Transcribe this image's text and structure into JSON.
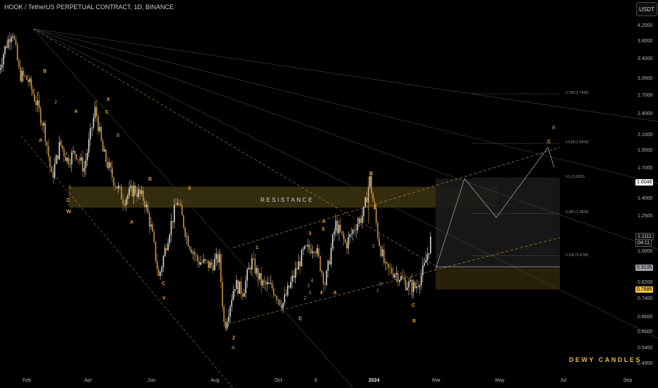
{
  "header": {
    "title": "HOOK / TetherUS PERPETUAL CONTRACT, 1D, BINANCE",
    "currency_button": "USDT"
  },
  "watermark": "DEWY CANDLES",
  "resistance_label": "RESISTANCE",
  "colors": {
    "background": "#000000",
    "candle_up": "#d9d9d9",
    "candle_down": "#c8923a",
    "wave_orange": "#e8a33a",
    "wave_gray": "#9a9a9a",
    "channel_dash": "#c8923a",
    "resistance_zone": "#3d3410",
    "support_zone": "#2a220a",
    "projection_box": "#1a1a1a"
  },
  "chart_data": {
    "type": "candlestick",
    "title": "HOOK / TetherUS PERPETUAL CONTRACT, 1D, BINANCE",
    "y_scale": "log",
    "ylim": [
      0.47,
      4.6
    ],
    "y_ticks": [
      "4.2000",
      "3.8000",
      "3.4000",
      "3.0000",
      "2.7000",
      "2.4000",
      "2.1000",
      "1.9000",
      "1.7000",
      "1.5500",
      "1.4000",
      "1.2500",
      "1.1111",
      "1.0000",
      "0.9135",
      "0.8200",
      "0.7886",
      "0.7400",
      "0.6600",
      "0.6000",
      "0.5400",
      "0.4900"
    ],
    "x_ticks": [
      "Feb",
      "Apr",
      "Jun",
      "Aug",
      "Oct",
      "6",
      "2024",
      "Mar",
      "May",
      "Jul",
      "Sep"
    ],
    "x_tick_bold": "2024",
    "price_tags": [
      {
        "value": "1.6048",
        "style": "white"
      },
      {
        "value": "1.1111",
        "style": "dark"
      },
      {
        "value": "04:11",
        "style": "dark"
      },
      {
        "value": "0.9135",
        "style": "gray"
      },
      {
        "value": "0.7886",
        "style": "yellow"
      }
    ],
    "fib_levels": [
      {
        "label": "0.786 (2.7442)",
        "price": 2.7442
      },
      {
        "label": "0.618 (2.0018)",
        "price": 2.0018
      },
      {
        "label": "0.5 (1.6052)",
        "price": 1.6052
      },
      {
        "label": "0.382 (1.2828)",
        "price": 1.2828
      },
      {
        "label": "0.236 (0.9794)",
        "price": 0.9794
      }
    ],
    "resistance_zone": [
      1.33,
      1.52
    ],
    "support_zone": [
      0.79,
      0.905
    ],
    "path_points": [
      [
        "2023-01-05",
        3.2
      ],
      [
        "2023-01-10",
        3.6
      ],
      [
        "2023-01-18",
        4.15
      ],
      [
        "2023-01-25",
        3.1
      ],
      [
        "2023-02-02",
        3.0
      ],
      [
        "2023-02-10",
        2.6
      ],
      [
        "2023-02-18",
        2.2
      ],
      [
        "2023-02-25",
        1.6
      ],
      [
        "2023-03-05",
        2.0
      ],
      [
        "2023-03-12",
        1.8
      ],
      [
        "2023-03-20",
        1.9
      ],
      [
        "2023-03-28",
        1.7
      ],
      [
        "2023-04-08",
        2.5
      ],
      [
        "2023-04-15",
        1.9
      ],
      [
        "2023-04-25",
        1.6
      ],
      [
        "2023-05-05",
        1.4
      ],
      [
        "2023-05-15",
        1.5
      ],
      [
        "2023-05-25",
        1.4
      ],
      [
        "2023-06-01",
        1.15
      ],
      [
        "2023-06-08",
        0.85
      ],
      [
        "2023-06-18",
        1.15
      ],
      [
        "2023-06-26",
        1.4
      ],
      [
        "2023-07-05",
        1.1
      ],
      [
        "2023-07-15",
        0.95
      ],
      [
        "2023-07-28",
        0.92
      ],
      [
        "2023-08-05",
        0.97
      ],
      [
        "2023-08-10",
        0.62
      ],
      [
        "2023-08-20",
        0.82
      ],
      [
        "2023-08-28",
        0.78
      ],
      [
        "2023-09-05",
        0.95
      ],
      [
        "2023-09-15",
        0.82
      ],
      [
        "2023-09-25",
        0.8
      ],
      [
        "2023-10-05",
        0.72
      ],
      [
        "2023-10-15",
        0.85
      ],
      [
        "2023-10-25",
        1.0
      ],
      [
        "2023-11-05",
        1.05
      ],
      [
        "2023-11-15",
        0.82
      ],
      [
        "2023-11-25",
        1.2
      ],
      [
        "2023-12-05",
        1.05
      ],
      [
        "2023-12-15",
        1.2
      ],
      [
        "2023-12-22",
        1.28
      ],
      [
        "2023-12-28",
        1.6
      ],
      [
        "2024-01-05",
        1.1
      ],
      [
        "2024-01-12",
        0.9
      ],
      [
        "2024-01-22",
        0.88
      ],
      [
        "2024-02-01",
        0.82
      ],
      [
        "2024-02-10",
        0.8
      ],
      [
        "2024-02-18",
        0.9
      ],
      [
        "2024-02-25",
        1.1
      ]
    ],
    "wave_labels": {
      "orange": [
        "B",
        "A",
        "A",
        "X",
        "C",
        "C",
        "W",
        "B",
        "A",
        "X",
        "C",
        "Y",
        "Z",
        "1",
        "3",
        "5",
        "A",
        "4",
        "A",
        "B",
        "C",
        "B",
        "C",
        "2"
      ],
      "gray": [
        "1",
        "2",
        "3",
        "4",
        "5",
        "B",
        "A",
        "1",
        "2",
        "1",
        "2",
        "3",
        "4",
        "5",
        "2",
        "1",
        "3",
        "5",
        "A",
        "B"
      ]
    }
  }
}
